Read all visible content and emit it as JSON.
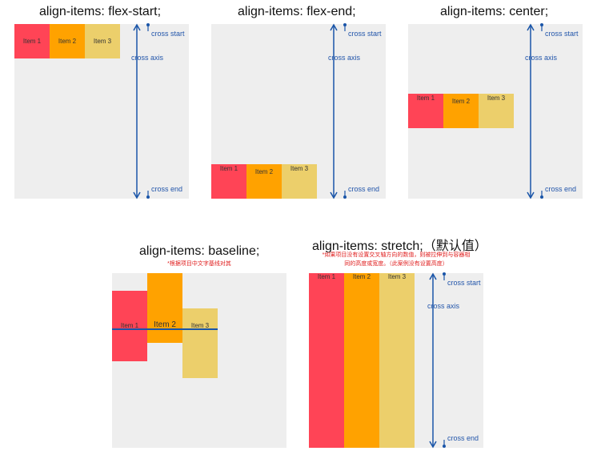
{
  "panels": {
    "flex_start": {
      "title": "align-items: flex-start;"
    },
    "flex_end": {
      "title": "align-items: flex-end;"
    },
    "center": {
      "title": "align-items: center;"
    },
    "baseline": {
      "title": "align-items: baseline;",
      "note": "*根据项目中文字基线对其"
    },
    "stretch": {
      "title": "align-items: stretch;（默认值）",
      "note_line1": "*如果项目没有设置交叉轴方向的数值，则被拉伸到与容器相",
      "note_line2": "同的高度或宽度。（此案例没有设置高度）"
    }
  },
  "items": {
    "item1": "Item 1",
    "item2": "Item 2",
    "item3": "Item 3"
  },
  "axis": {
    "start": "cross start",
    "mid": "cross axis",
    "end": "cross end"
  },
  "colors": {
    "item1": "#ff4456",
    "item2": "#ffa200",
    "item3": "#eccf6b",
    "axis": "#1a55a8",
    "container": "#eeeeee"
  }
}
